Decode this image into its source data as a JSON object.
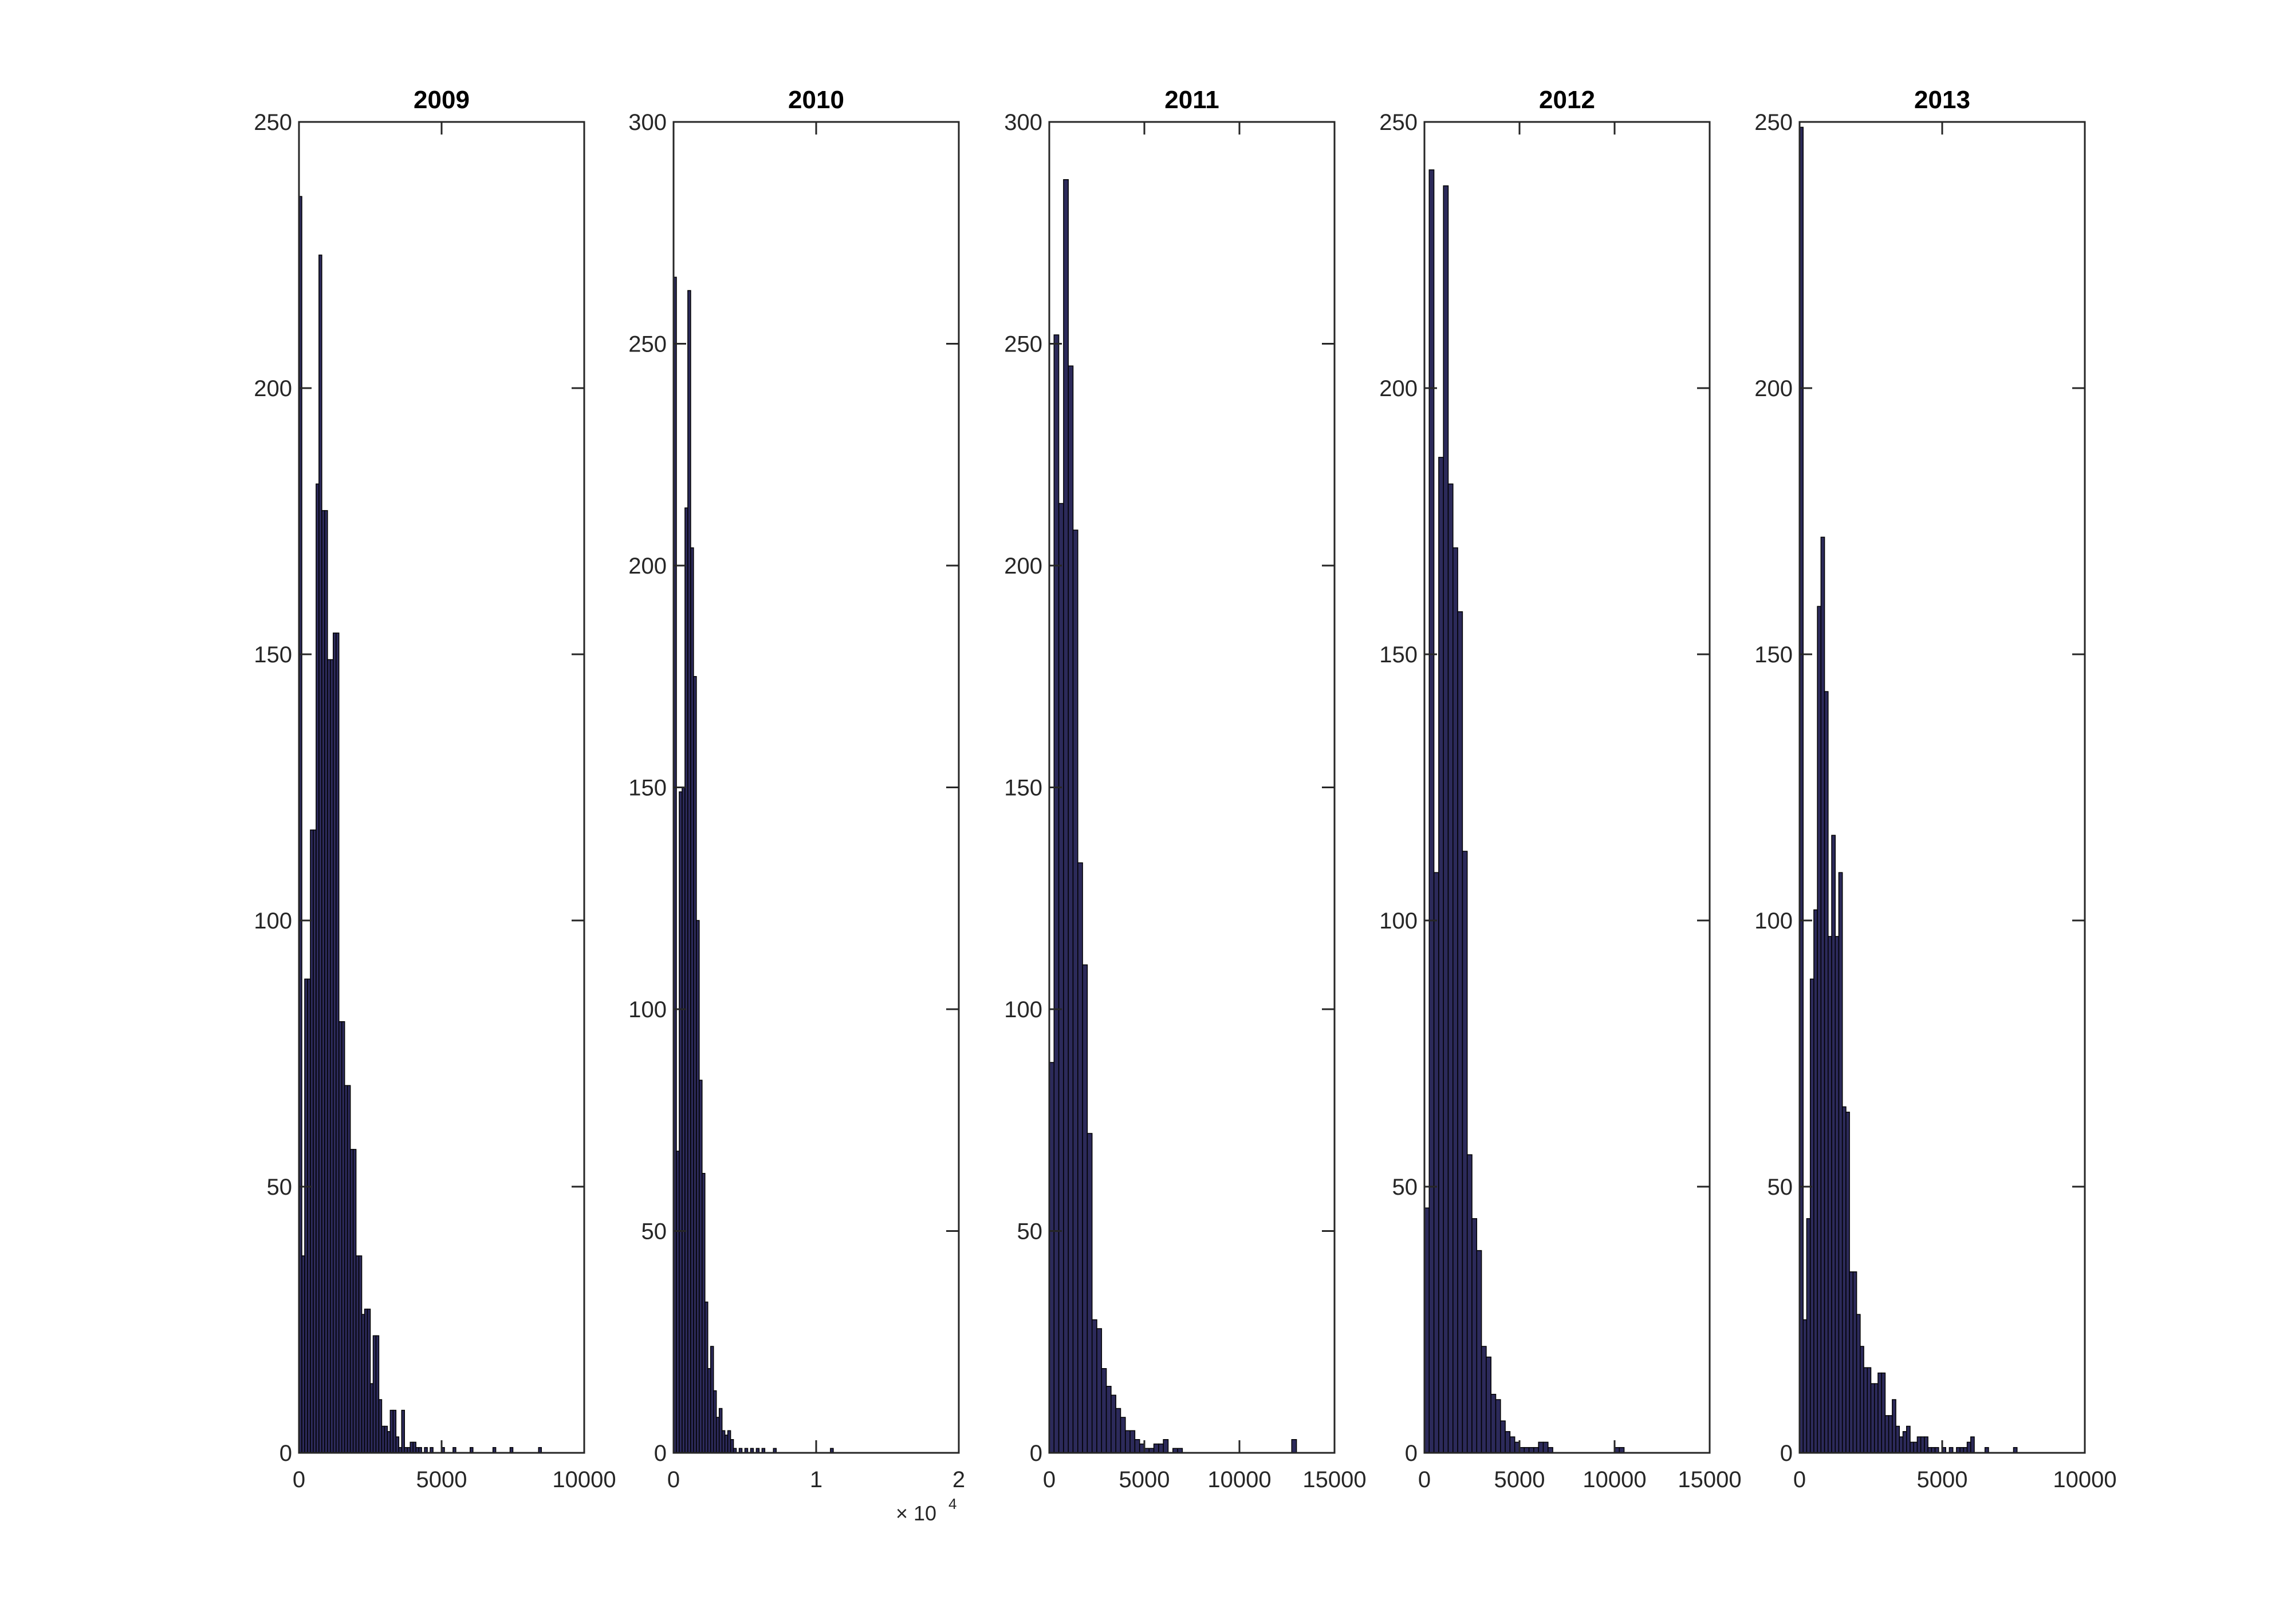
{
  "colors": {
    "bar_fill": "#2c2a5a",
    "bar_edge": "#000000",
    "axis": "#262626"
  },
  "chart_data": [
    {
      "type": "bar",
      "title": "2009",
      "xlim": [
        0,
        10000
      ],
      "ylim": [
        0,
        250
      ],
      "xticks": [
        0,
        5000,
        10000
      ],
      "xtick_labels": [
        "0",
        "5000",
        "10000"
      ],
      "yticks": [
        0,
        50,
        100,
        150,
        200,
        250
      ],
      "ytick_labels": [
        "0",
        "50",
        "100",
        "150",
        "200",
        "250"
      ],
      "bin_width": 100,
      "x": [
        0,
        100,
        200,
        300,
        400,
        500,
        600,
        700,
        800,
        900,
        1000,
        1100,
        1200,
        1300,
        1400,
        1500,
        1600,
        1700,
        1800,
        1900,
        2000,
        2100,
        2200,
        2300,
        2400,
        2500,
        2600,
        2700,
        2800,
        2900,
        3000,
        3100,
        3200,
        3300,
        3400,
        3500,
        3600,
        3700,
        3800,
        3900,
        4000,
        4100,
        4200,
        4400,
        4600,
        5000,
        5400,
        6000,
        6800,
        7400,
        8400
      ],
      "values": [
        236,
        37,
        89,
        89,
        117,
        117,
        182,
        225,
        177,
        177,
        149,
        149,
        154,
        154,
        81,
        81,
        69,
        69,
        57,
        57,
        37,
        37,
        26,
        27,
        27,
        13,
        22,
        22,
        10,
        5,
        5,
        4,
        8,
        8,
        3,
        1,
        8,
        1,
        1,
        2,
        2,
        1,
        1,
        1,
        1,
        1,
        1,
        1,
        1,
        1,
        1
      ]
    },
    {
      "type": "bar",
      "title": "2010",
      "xlim": [
        0,
        20000
      ],
      "ylim": [
        0,
        300
      ],
      "xticks": [
        0,
        10000,
        20000
      ],
      "xtick_labels": [
        "0",
        "1",
        "2"
      ],
      "x_exponent_label": "× 10",
      "x_exponent_power": "4",
      "yticks": [
        0,
        50,
        100,
        150,
        200,
        250,
        300
      ],
      "ytick_labels": [
        "0",
        "50",
        "100",
        "150",
        "200",
        "250",
        "300"
      ],
      "bin_width": 200,
      "x": [
        0,
        200,
        400,
        600,
        800,
        1000,
        1200,
        1400,
        1600,
        1800,
        2000,
        2200,
        2400,
        2600,
        2800,
        3000,
        3200,
        3400,
        3600,
        3800,
        4000,
        4200,
        4600,
        5000,
        5400,
        5800,
        6200,
        7000,
        11000
      ],
      "values": [
        265,
        68,
        149,
        150,
        213,
        262,
        204,
        175,
        120,
        84,
        63,
        34,
        19,
        24,
        14,
        8,
        10,
        5,
        4,
        5,
        3,
        1,
        1,
        1,
        1,
        1,
        1,
        1,
        1
      ]
    },
    {
      "type": "bar",
      "title": "2011",
      "xlim": [
        0,
        15000
      ],
      "ylim": [
        0,
        300
      ],
      "xticks": [
        0,
        5000,
        10000,
        15000
      ],
      "xtick_labels": [
        "0",
        "5000",
        "10000",
        "15000"
      ],
      "yticks": [
        0,
        50,
        100,
        150,
        200,
        250,
        300
      ],
      "ytick_labels": [
        "0",
        "50",
        "100",
        "150",
        "200",
        "250",
        "300"
      ],
      "bin_width": 250,
      "x": [
        0,
        250,
        500,
        750,
        1000,
        1250,
        1500,
        1750,
        2000,
        2250,
        2500,
        2750,
        3000,
        3250,
        3500,
        3750,
        4000,
        4250,
        4500,
        4750,
        5000,
        5250,
        5500,
        5750,
        6000,
        6500,
        6750,
        12750
      ],
      "values": [
        88,
        252,
        214,
        287,
        245,
        208,
        133,
        110,
        72,
        30,
        28,
        19,
        15,
        13,
        10,
        8,
        5,
        5,
        3,
        2,
        1,
        1,
        2,
        2,
        3,
        1,
        1,
        3
      ]
    },
    {
      "type": "bar",
      "title": "2012",
      "xlim": [
        0,
        15000
      ],
      "ylim": [
        0,
        250
      ],
      "xticks": [
        0,
        5000,
        10000,
        15000
      ],
      "xtick_labels": [
        "0",
        "5000",
        "10000",
        "15000"
      ],
      "yticks": [
        0,
        50,
        100,
        150,
        200,
        250
      ],
      "ytick_labels": [
        "0",
        "50",
        "100",
        "150",
        "200",
        "250"
      ],
      "bin_width": 250,
      "x": [
        0,
        250,
        500,
        750,
        1000,
        1250,
        1500,
        1750,
        2000,
        2250,
        2500,
        2750,
        3000,
        3250,
        3500,
        3750,
        4000,
        4250,
        4500,
        4750,
        5000,
        5250,
        5500,
        5750,
        6000,
        6250,
        6500,
        10000,
        10250
      ],
      "values": [
        46,
        241,
        109,
        187,
        238,
        182,
        170,
        158,
        113,
        56,
        44,
        38,
        20,
        18,
        11,
        10,
        6,
        4,
        3,
        2,
        1,
        1,
        1,
        1,
        2,
        2,
        1,
        1,
        1
      ]
    },
    {
      "type": "bar",
      "title": "2013",
      "xlim": [
        0,
        10000
      ],
      "ylim": [
        0,
        250
      ],
      "xticks": [
        0,
        5000,
        10000
      ],
      "xtick_labels": [
        "0",
        "5000",
        "10000"
      ],
      "yticks": [
        0,
        50,
        100,
        150,
        200,
        250
      ],
      "ytick_labels": [
        "0",
        "50",
        "100",
        "150",
        "200",
        "250"
      ],
      "bin_width": 125,
      "x": [
        0,
        125,
        250,
        375,
        500,
        625,
        750,
        875,
        1000,
        1125,
        1250,
        1375,
        1500,
        1625,
        1750,
        1875,
        2000,
        2125,
        2250,
        2375,
        2500,
        2625,
        2750,
        2875,
        3000,
        3125,
        3250,
        3375,
        3500,
        3625,
        3750,
        3875,
        4000,
        4125,
        4250,
        4375,
        4500,
        4625,
        4750,
        5000,
        5250,
        5500,
        5625,
        5750,
        5875,
        6000,
        6500,
        7500
      ],
      "values": [
        249,
        25,
        44,
        89,
        102,
        159,
        172,
        143,
        97,
        116,
        97,
        109,
        65,
        64,
        34,
        34,
        26,
        20,
        16,
        16,
        13,
        13,
        15,
        15,
        7,
        7,
        10,
        5,
        3,
        4,
        5,
        2,
        2,
        3,
        3,
        3,
        1,
        1,
        1,
        1,
        1,
        1,
        1,
        1,
        2,
        3,
        1,
        1
      ]
    }
  ]
}
